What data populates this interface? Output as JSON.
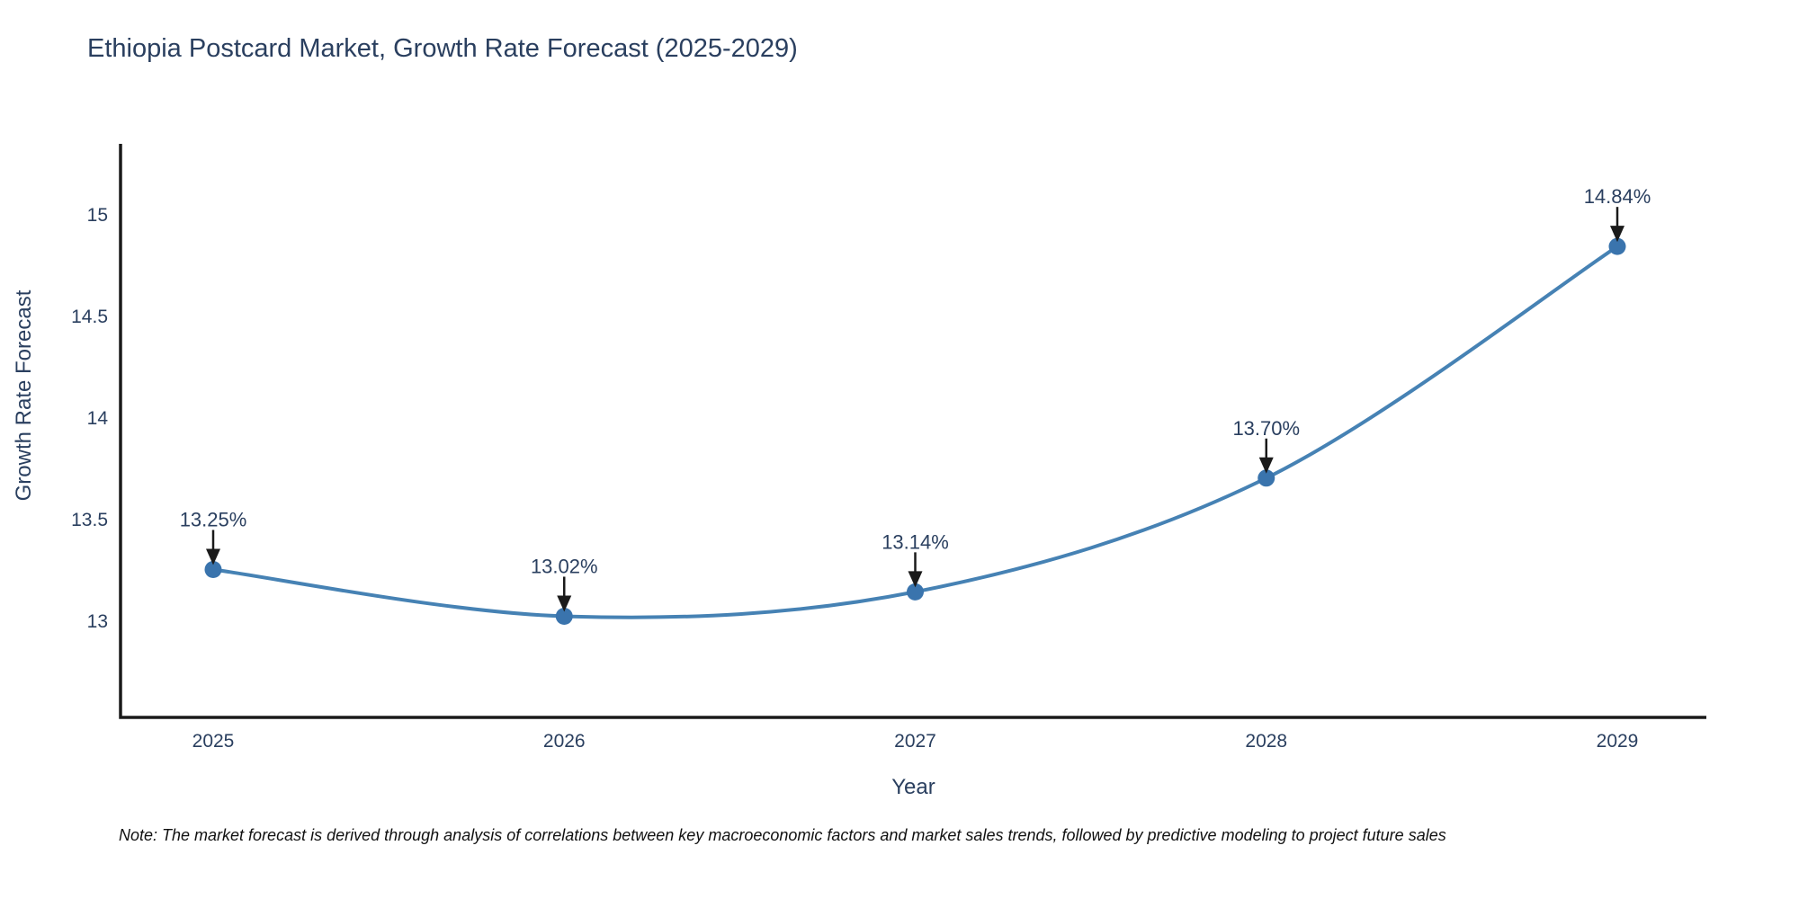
{
  "title": "Ethiopia Postcard Market, Growth Rate Forecast (2025-2029)",
  "note": "Note: The market forecast is derived through analysis of correlations between key macroeconomic factors and market sales trends, followed by predictive modeling to project future sales",
  "chart_data": {
    "type": "line",
    "title": "Ethiopia Postcard Market, Growth Rate Forecast (2025-2029)",
    "xlabel": "Year",
    "ylabel": "Growth Rate Forecast",
    "x": [
      2025,
      2026,
      2027,
      2028,
      2029
    ],
    "values": [
      13.25,
      13.02,
      13.14,
      13.7,
      14.84
    ],
    "point_labels": [
      "13.25%",
      "13.02%",
      "13.14%",
      "13.70%",
      "14.84%"
    ],
    "yticks": [
      13,
      13.5,
      14,
      14.5,
      15
    ],
    "ylim": [
      12.52,
      15.35
    ],
    "xlim_px_note": "axis line extends beyond first/last category",
    "line_shape": "spline",
    "grid": false,
    "legend": "none",
    "colors": {
      "line": "#4682b4",
      "marker": "#3a74ad",
      "axis": "#1a1a1a",
      "tick_text": "#2a3f5f",
      "annotation_text": "#2a3f5f",
      "annotation_arrow": "#1a1a1a",
      "title_text": "#2a3f5f"
    }
  }
}
